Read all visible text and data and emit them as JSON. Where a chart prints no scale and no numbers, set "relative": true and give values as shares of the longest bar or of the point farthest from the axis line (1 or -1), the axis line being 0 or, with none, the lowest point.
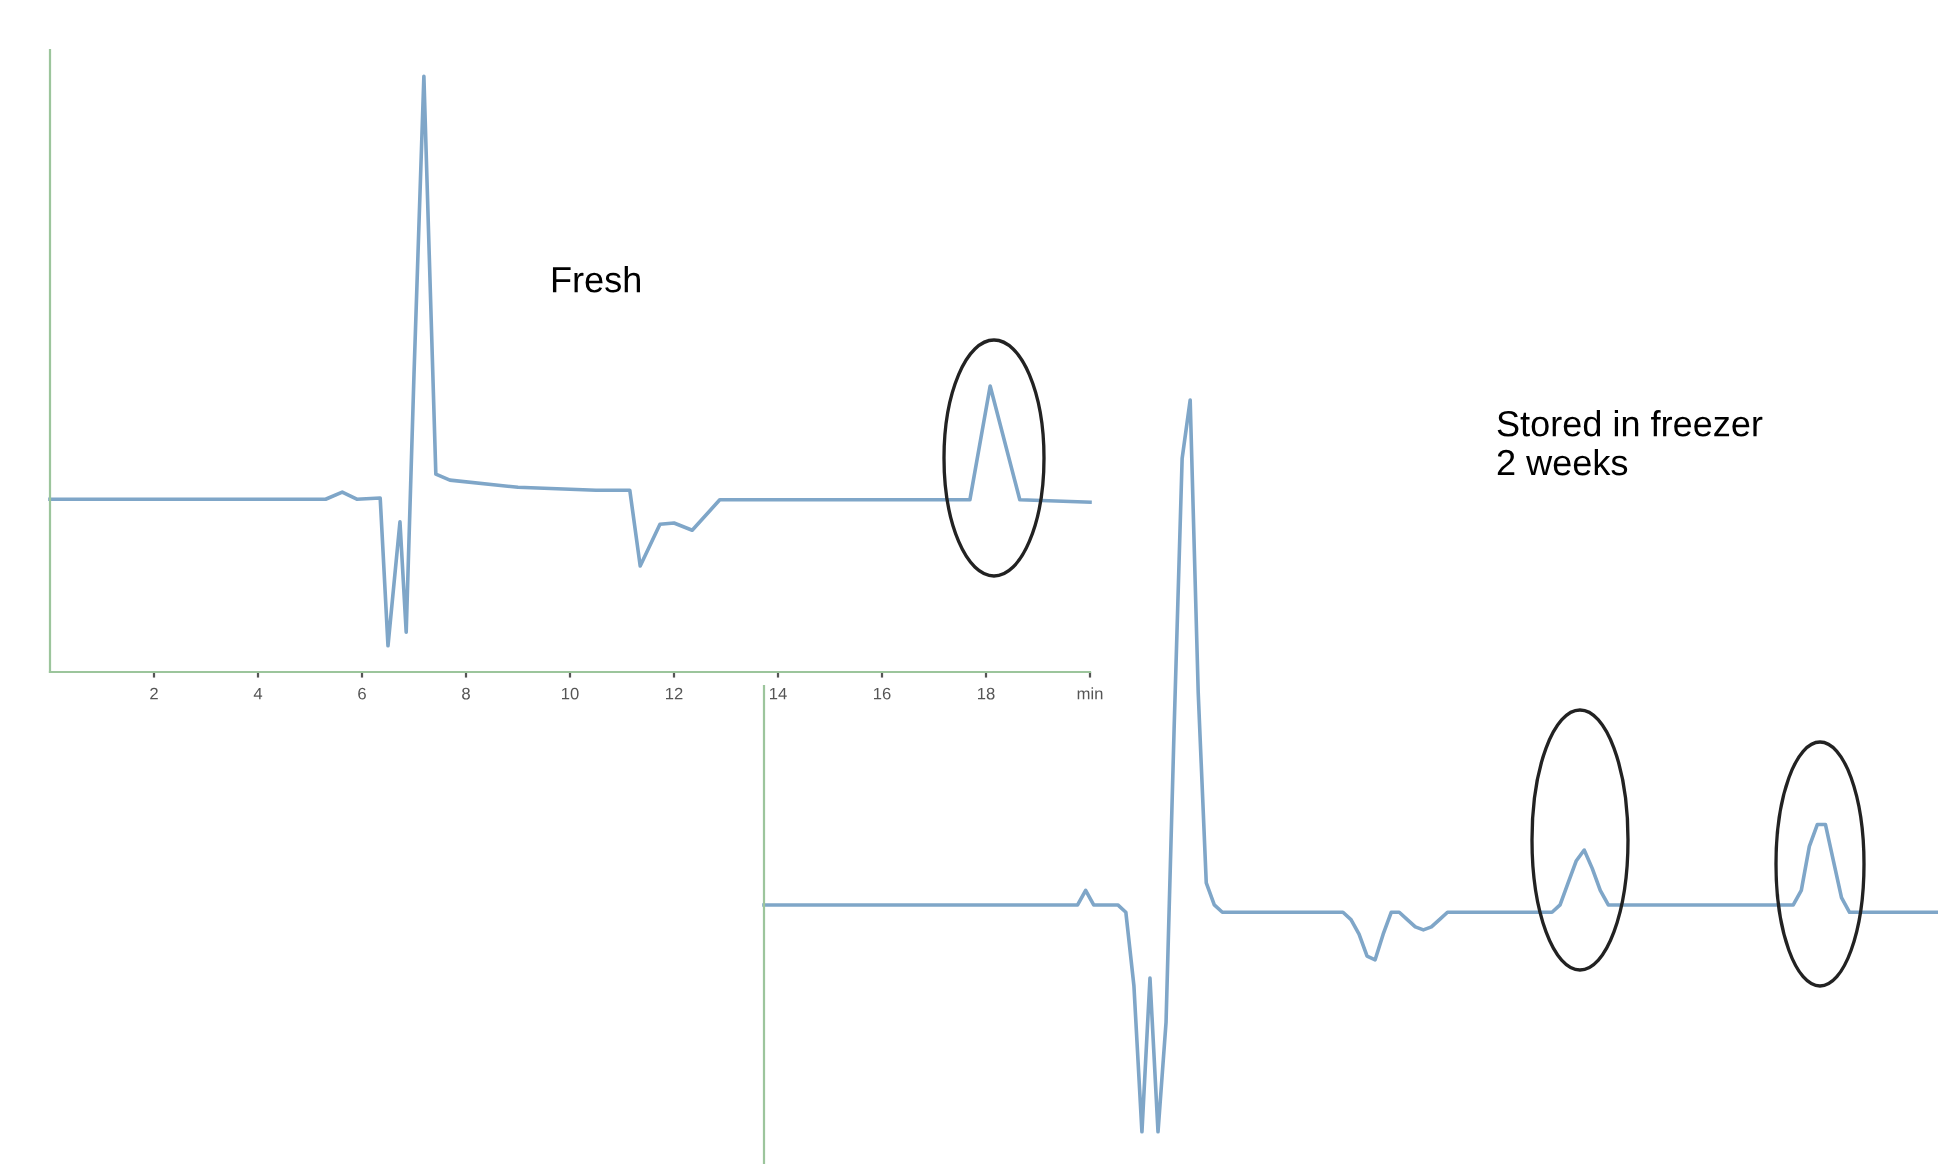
{
  "chart_data": [
    {
      "type": "line",
      "relative": true,
      "x": [
        0,
        5.3,
        5.62,
        5.9,
        6.35,
        6.5,
        6.73,
        6.85,
        7.0,
        7.19,
        7.42,
        7.69,
        9.0,
        10.5,
        11.15,
        11.35,
        11.73,
        12.0,
        12.35,
        12.88,
        15.0,
        17.69,
        18.08,
        18.65,
        20
      ],
      "series": [
        {
          "color": "#7fa6c8",
          "values": [
            0.29,
            0.29,
            0.302,
            0.29,
            0.292,
            0.044,
            0.252,
            0.067,
            0.5,
            1,
            0.332,
            0.322,
            0.31,
            0.305,
            0.305,
            0.178,
            0.248,
            0.25,
            0.238,
            0.289,
            0.289,
            0.289,
            0.48,
            0.289,
            0.285
          ]
        }
      ],
      "xlim": [
        0,
        20
      ],
      "xticks": [
        2,
        4,
        6,
        8,
        10,
        12,
        14,
        16,
        18,
        {
          "value": 20,
          "label": "min"
        }
      ],
      "tick_labels": "x",
      "annotations": [
        "Fresh"
      ]
    },
    {
      "type": "line",
      "relative": true,
      "tick_labels": false,
      "categories": [
        null,
        null,
        null,
        null,
        null,
        null,
        null,
        null,
        null,
        null,
        null,
        null,
        null,
        null,
        null,
        null,
        null,
        null,
        null,
        null,
        null,
        null,
        null,
        null,
        null,
        null,
        null,
        null,
        null,
        null,
        null,
        null,
        null,
        null,
        null,
        null,
        null,
        null,
        null,
        null,
        null,
        null,
        null,
        null,
        null,
        null,
        null,
        null,
        null,
        null,
        null,
        null,
        null,
        null,
        null,
        null,
        null,
        null,
        null,
        null,
        null,
        null,
        null,
        null,
        null,
        null,
        null,
        null,
        null,
        null,
        null,
        null,
        null,
        null,
        null,
        null,
        null,
        null,
        null,
        null,
        null,
        null,
        null,
        null,
        null,
        null,
        null,
        null,
        null,
        null,
        null,
        null,
        null,
        null,
        null,
        null,
        null,
        null,
        null,
        null,
        null,
        null,
        null,
        null,
        null,
        null,
        null,
        null,
        null,
        null,
        null,
        null,
        null,
        null,
        null,
        null,
        null,
        null,
        null,
        null,
        null,
        null,
        null,
        null,
        null,
        null,
        null,
        null,
        null,
        null,
        null,
        null,
        null,
        null,
        null,
        null,
        null,
        null,
        null,
        null,
        null,
        null,
        null,
        null,
        null,
        null,
        null
      ],
      "series": [
        {
          "color": "#7fa6c8",
          "values": [
            0.31,
            0.31,
            0.31,
            0.31,
            0.31,
            0.31,
            0.31,
            0.31,
            0.31,
            0.31,
            0.31,
            0.31,
            0.31,
            0.31,
            0.31,
            0.31,
            0.31,
            0.31,
            0.31,
            0.31,
            0.31,
            0.31,
            0.31,
            0.31,
            0.31,
            0.31,
            0.31,
            0.31,
            0.31,
            0.31,
            0.31,
            0.31,
            0.31,
            0.31,
            0.31,
            0.31,
            0.31,
            0.31,
            0.31,
            0.31,
            0.33,
            0.31,
            0.31,
            0.31,
            0.31,
            0.3,
            0.2,
            0.0,
            0.21,
            0.0,
            0.15,
            0.55,
            0.92,
            1.0,
            0.6,
            0.34,
            0.31,
            0.3,
            0.3,
            0.3,
            0.3,
            0.3,
            0.3,
            0.3,
            0.3,
            0.3,
            0.3,
            0.3,
            0.3,
            0.3,
            0.3,
            0.3,
            0.3,
            0.29,
            0.27,
            0.24,
            0.235,
            0.27,
            0.3,
            0.3,
            0.29,
            0.28,
            0.276,
            0.28,
            0.29,
            0.3,
            0.3,
            0.3,
            0.3,
            0.3,
            0.3,
            0.3,
            0.3,
            0.3,
            0.3,
            0.3,
            0.3,
            0.3,
            0.3,
            0.31,
            0.34,
            0.37,
            0.385,
            0.36,
            0.33,
            0.31,
            0.31,
            0.31,
            0.31,
            0.31,
            0.31,
            0.31,
            0.31,
            0.31,
            0.31,
            0.31,
            0.31,
            0.31,
            0.31,
            0.31,
            0.31,
            0.31,
            0.31,
            0.31,
            0.31,
            0.31,
            0.31,
            0.31,
            0.31,
            0.33,
            0.39,
            0.42,
            0.42,
            0.37,
            0.32,
            0.3,
            0.3,
            0.3,
            0.3,
            0.3,
            0.3,
            0.3,
            0.3,
            0.3,
            0.3,
            0.3,
            0.3
          ]
        }
      ],
      "annotations": [
        "Stored in freezer\n2 weeks"
      ]
    }
  ]
}
